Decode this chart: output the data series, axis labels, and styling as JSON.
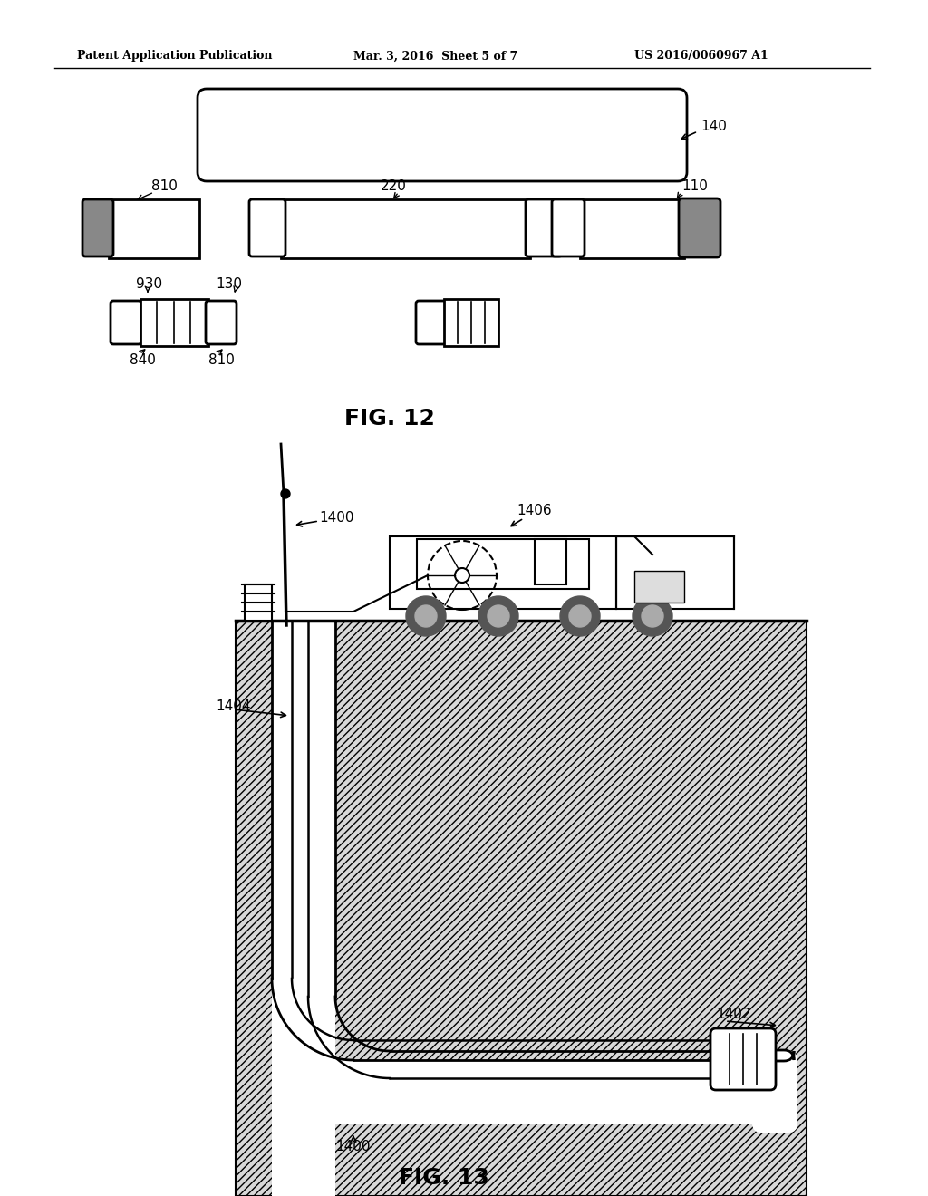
{
  "bg_color": "#ffffff",
  "line_color": "#000000",
  "header_left": "Patent Application Publication",
  "header_center": "Mar. 3, 2016  Sheet 5 of 7",
  "header_right": "US 2016/0060967 A1",
  "fig12_label": "FIG. 12",
  "fig13_label": "FIG. 13",
  "label_140": "140",
  "label_810a": "810",
  "label_220": "220",
  "label_110": "110",
  "label_930": "930",
  "label_130": "130",
  "label_840": "840",
  "label_810b": "810",
  "label_1400a": "1400",
  "label_1406": "1406",
  "label_1404": "1404",
  "label_1402": "1402",
  "label_1400b": "1400"
}
